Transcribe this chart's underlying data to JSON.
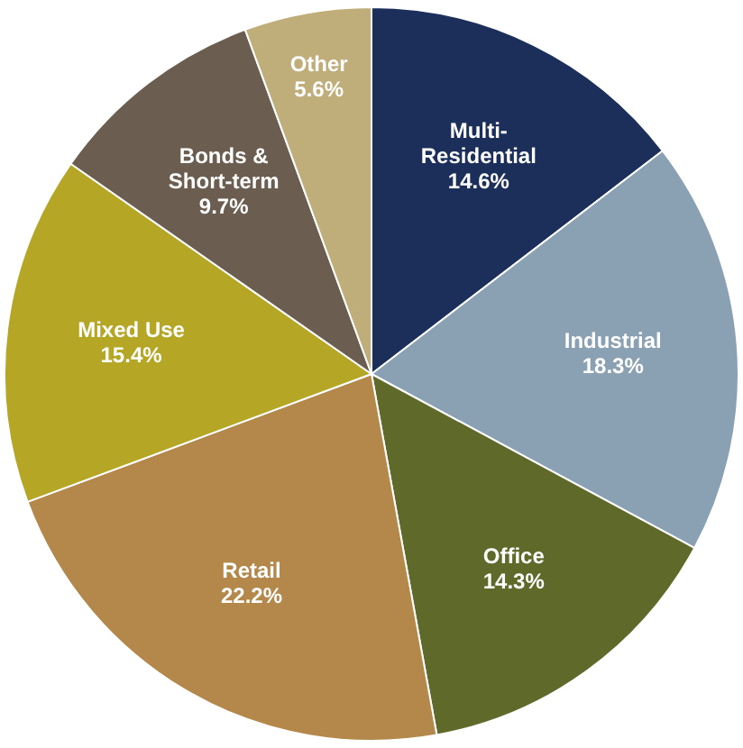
{
  "chart_data": {
    "type": "pie",
    "categories": [
      "Multi-Residential",
      "Industrial",
      "Office",
      "Retail",
      "Mixed Use",
      "Bonds & Short-term",
      "Other"
    ],
    "values": [
      14.6,
      18.3,
      14.3,
      22.2,
      15.4,
      9.7,
      5.6
    ],
    "value_labels": [
      "14.6%",
      "18.3%",
      "14.3%",
      "22.2%",
      "15.4%",
      "9.7%",
      "5.6%"
    ],
    "colors": [
      "#1b2f5a",
      "#8aa0b3",
      "#5f6a2a",
      "#b3884a",
      "#b5a626",
      "#6b5e50",
      "#bfae7a"
    ],
    "legend": false
  }
}
